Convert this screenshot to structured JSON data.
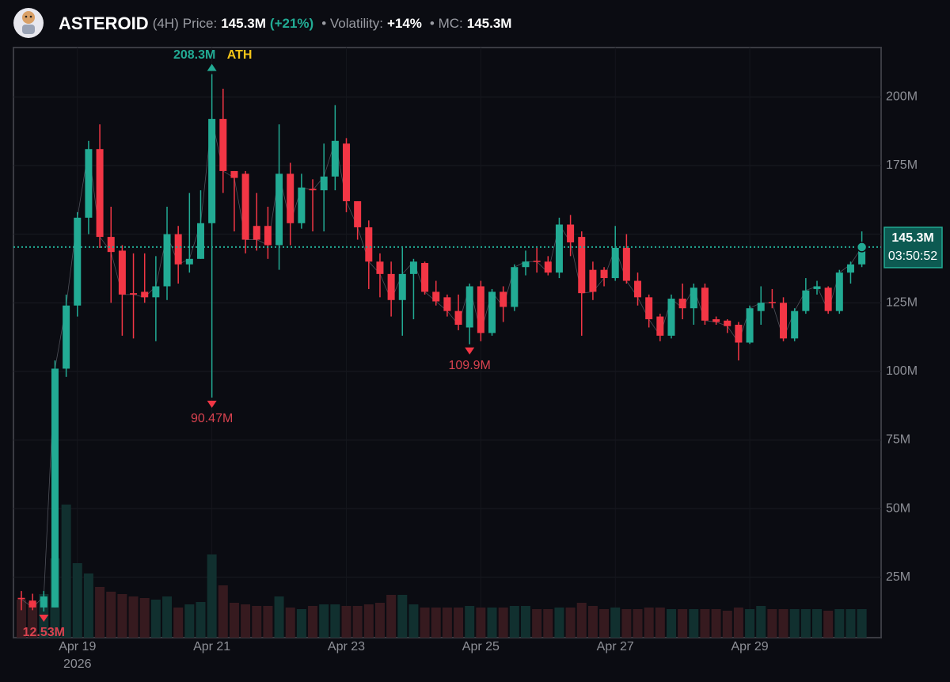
{
  "header": {
    "name": "ASTEROID",
    "interval": "(4H)",
    "price_label": "Price:",
    "price": "145.3M",
    "change": "(+21%)",
    "volatility_label": "• Volatility:",
    "volatility": "+14%",
    "mc_label": "• MC:",
    "mc": "145.3M"
  },
  "chart_data": {
    "type": "candlestick",
    "categories": [
      null,
      null,
      null,
      null,
      null,
      "Apr 19",
      null,
      null,
      null,
      null,
      null,
      null,
      null,
      null,
      null,
      null,
      null,
      "Apr 21",
      null,
      null,
      null,
      null,
      null,
      null,
      null,
      null,
      null,
      null,
      null,
      "Apr 23",
      null,
      null,
      null,
      null,
      null,
      null,
      null,
      null,
      null,
      null,
      null,
      "Apr 25",
      null,
      null,
      null,
      null,
      null,
      null,
      null,
      null,
      null,
      null,
      null,
      "Apr 27",
      null,
      null,
      null,
      null,
      null,
      null,
      null,
      null,
      null,
      null,
      null,
      "Apr 29",
      null,
      null,
      null,
      null,
      null,
      null,
      null,
      null,
      null,
      null
    ],
    "x_year": "2026",
    "open": [
      17.5,
      16.5,
      14,
      14,
      101,
      124,
      156,
      181,
      149,
      144,
      128.5,
      129,
      127,
      131,
      150,
      139,
      141,
      154,
      192,
      173,
      172,
      153,
      153,
      146,
      172,
      154,
      166.5,
      166,
      171,
      183,
      162,
      152.5,
      140,
      135.5,
      126,
      135.5,
      139.5,
      129,
      127,
      122,
      116,
      131,
      114,
      129,
      123.5,
      138,
      140.3,
      140,
      136,
      153.5,
      149,
      137,
      137,
      134,
      145,
      133,
      127,
      120,
      113,
      126.5,
      123,
      130.5,
      119,
      118.5,
      117,
      110.5,
      122,
      125.3,
      125,
      112,
      122,
      130,
      130.5,
      122,
      136,
      139
    ],
    "high": [
      20,
      19,
      20,
      104,
      128,
      158,
      184,
      190,
      160,
      146,
      143,
      143,
      142,
      160,
      153,
      165,
      166,
      208.3,
      203,
      173,
      173,
      165,
      160,
      190,
      176,
      172,
      170,
      183,
      197,
      185,
      162,
      155,
      143,
      140,
      145,
      141,
      140,
      133,
      128,
      128,
      132,
      133,
      130,
      131,
      139,
      144,
      145,
      142,
      156,
      157,
      151,
      140,
      138,
      153,
      150,
      136,
      128,
      121,
      128,
      132,
      132,
      132,
      120,
      119,
      118,
      124,
      131,
      130,
      127,
      123,
      134,
      133,
      131,
      137,
      140,
      151
    ],
    "low": [
      13,
      13,
      12.53,
      14,
      98,
      120,
      150,
      145,
      125,
      113,
      112,
      125,
      111,
      126,
      132,
      136,
      141,
      90.47,
      165,
      151,
      143,
      144,
      141,
      137,
      146,
      152,
      151,
      151,
      166,
      158,
      148,
      130,
      127,
      120,
      113,
      119,
      128,
      124,
      120,
      115,
      109.9,
      111,
      113,
      118,
      122,
      135,
      136,
      135,
      134,
      142,
      113,
      126,
      131,
      133,
      132,
      124,
      116,
      111,
      112,
      119,
      117,
      117,
      117,
      114,
      104,
      110,
      117,
      123,
      111,
      111,
      121,
      128,
      121,
      121,
      132,
      138
    ],
    "close": [
      17,
      14,
      18,
      101,
      124,
      156,
      181,
      149,
      143.5,
      128,
      128,
      127,
      131,
      150,
      139,
      141,
      154,
      192,
      173,
      170.5,
      148,
      148,
      146,
      172,
      154,
      167,
      166,
      171,
      184,
      162,
      152.5,
      140,
      135.5,
      126,
      135.5,
      140,
      129,
      125.5,
      122,
      117,
      131,
      114,
      129,
      123.5,
      138,
      140,
      140,
      136,
      153.5,
      147,
      128.5,
      129,
      134,
      145,
      133,
      127,
      119,
      113,
      126.5,
      123,
      130.5,
      118.5,
      118,
      116.5,
      110.5,
      123,
      125,
      125,
      112,
      122,
      129.5,
      131,
      122,
      136,
      139,
      145.3
    ],
    "volume": [
      48,
      45,
      55,
      100,
      168,
      94,
      81,
      64,
      58,
      55,
      52,
      50,
      48,
      52,
      38,
      42,
      45,
      105,
      66,
      44,
      42,
      40,
      40,
      52,
      38,
      36,
      40,
      42,
      42,
      40,
      40,
      42,
      44,
      54,
      54,
      42,
      38,
      38,
      38,
      38,
      40,
      38,
      38,
      38,
      40,
      40,
      36,
      36,
      38,
      38,
      44,
      40,
      36,
      38,
      36,
      36,
      38,
      38,
      36,
      36,
      36,
      36,
      36,
      34,
      38,
      36,
      40,
      36,
      36,
      36,
      36,
      36,
      34,
      36,
      36,
      36
    ],
    "up_color": "#22ab94",
    "down_color": "#f23645",
    "volume_up_color": "#11302f",
    "volume_down_color": "#361a1f",
    "ylim": [
      3,
      218
    ],
    "yticks": [
      {
        "value": 25,
        "label": "25M"
      },
      {
        "value": 50,
        "label": "50M"
      },
      {
        "value": 75,
        "label": "75M"
      },
      {
        "value": 100,
        "label": "100M"
      },
      {
        "value": 125,
        "label": "125M"
      },
      {
        "value": 150,
        "label": "150M"
      },
      {
        "value": 175,
        "label": "175M"
      },
      {
        "value": 200,
        "label": "200M"
      }
    ],
    "grid": true,
    "annotations": [
      {
        "value": 208.3,
        "label": "208.3M",
        "tag": "ATH",
        "side": "high"
      },
      {
        "value": 90.47,
        "label": "90.47M",
        "side": "low"
      },
      {
        "value": 109.9,
        "label": "109.9M",
        "side": "low"
      },
      {
        "value": 12.53,
        "label": "12.53M",
        "side": "low"
      }
    ],
    "last_price": {
      "value": 145.3,
      "label": "145.3M",
      "countdown": "03:50:52"
    }
  }
}
